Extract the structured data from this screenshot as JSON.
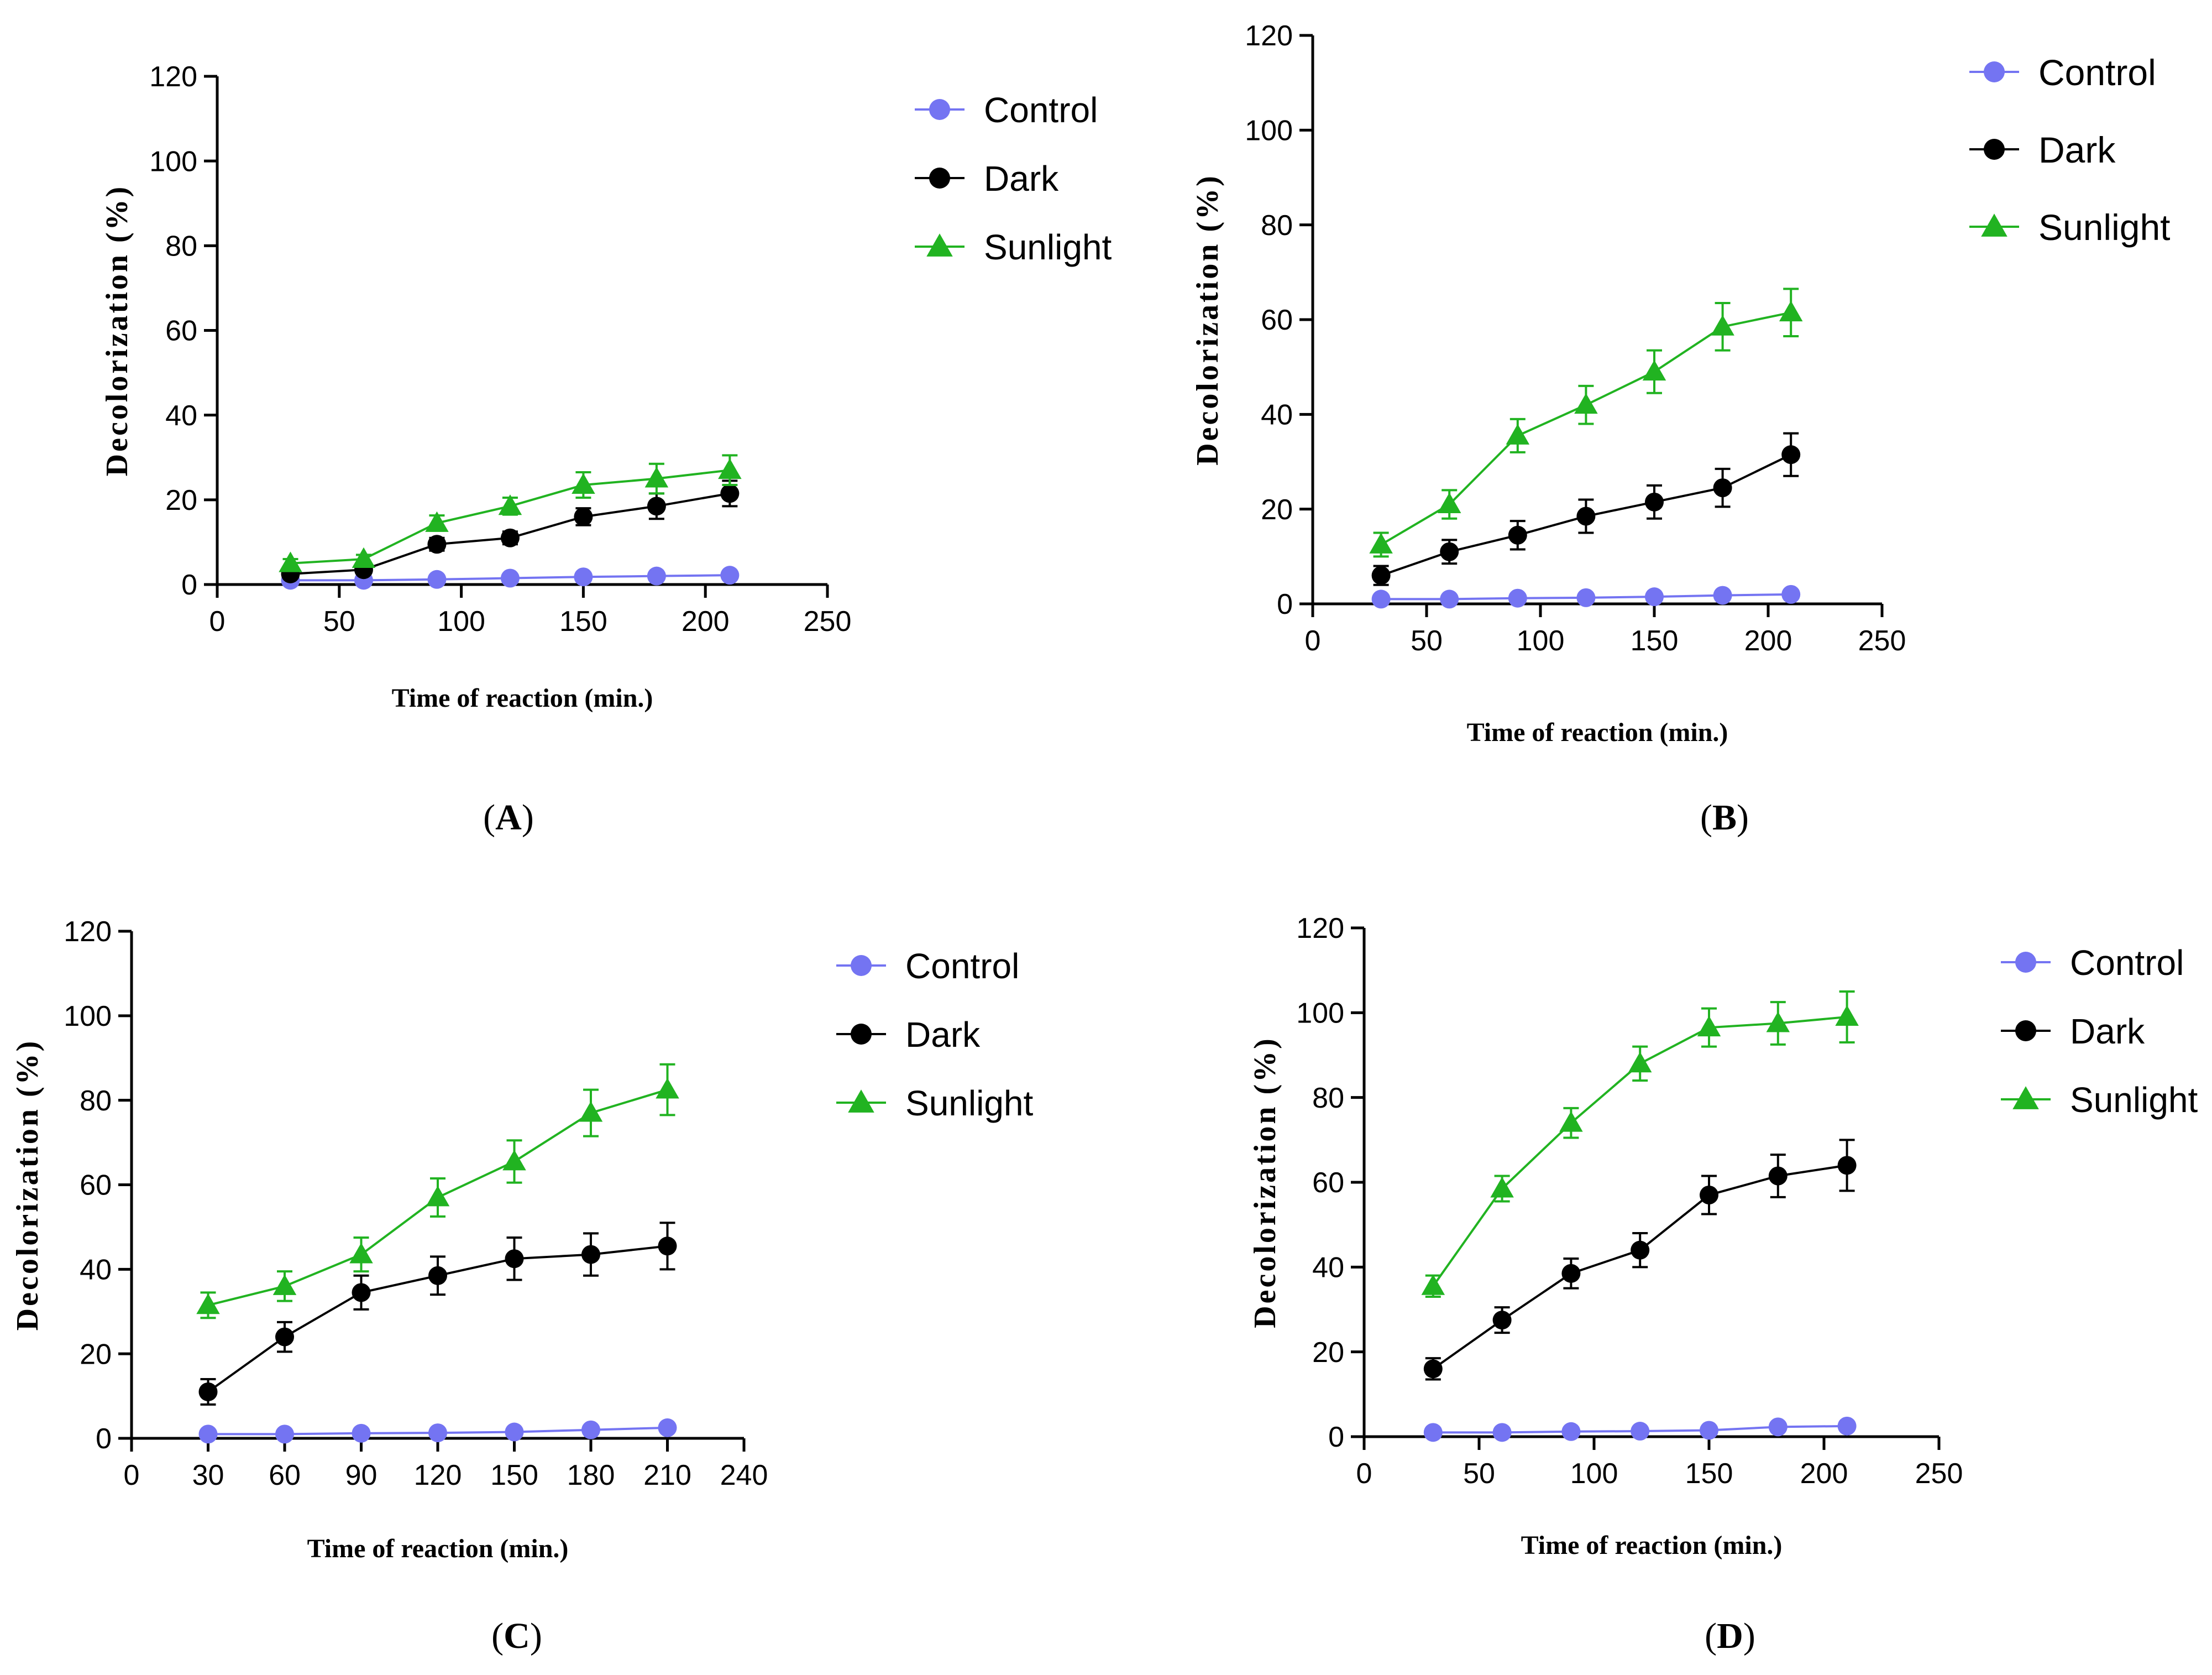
{
  "colors": {
    "control": "#7474f2",
    "dark": "#000000",
    "sunlight": "#21b321",
    "axis": "#000000"
  },
  "chart_data": [
    {
      "panel": "(A)",
      "label_letter": "A",
      "type": "line",
      "xlabel": "Time of reaction (min.)",
      "ylabel": "Decolorization (%)",
      "xlim": [
        0,
        250
      ],
      "ylim": [
        0,
        120
      ],
      "xticks": [
        0,
        50,
        100,
        150,
        200,
        250
      ],
      "yticks": [
        0,
        20,
        40,
        60,
        80,
        100,
        120
      ],
      "x": [
        30,
        60,
        90,
        120,
        150,
        180,
        210
      ],
      "legend": [
        "Control",
        "Dark",
        "Sunlight"
      ],
      "series": [
        {
          "name": "Control",
          "values": [
            1.0,
            1.0,
            1.2,
            1.5,
            1.8,
            2.0,
            2.2
          ],
          "errors": [
            0.4,
            0.4,
            0.4,
            0.4,
            0.4,
            0.5,
            0.5
          ]
        },
        {
          "name": "Dark",
          "values": [
            2.5,
            3.5,
            9.5,
            11.0,
            16.0,
            18.5,
            21.5
          ],
          "errors": [
            0.8,
            1.0,
            1.5,
            1.5,
            2.0,
            3.0,
            3.0
          ]
        },
        {
          "name": "Sunlight",
          "values": [
            5.0,
            6.0,
            14.5,
            18.5,
            23.5,
            25.0,
            27.0
          ],
          "errors": [
            1.0,
            1.0,
            1.8,
            2.0,
            3.0,
            3.5,
            3.5
          ]
        }
      ]
    },
    {
      "panel": "(B)",
      "label_letter": "B",
      "type": "line",
      "xlabel": "Time of reaction (min.)",
      "ylabel": "Decolorization (%)",
      "xlim": [
        0,
        250
      ],
      "ylim": [
        0,
        120
      ],
      "xticks": [
        0,
        50,
        100,
        150,
        200,
        250
      ],
      "yticks": [
        0,
        20,
        40,
        60,
        80,
        100,
        120
      ],
      "x": [
        30,
        60,
        90,
        120,
        150,
        180,
        210
      ],
      "legend": [
        "Control",
        "Dark",
        "Sunlight"
      ],
      "series": [
        {
          "name": "Control",
          "values": [
            1.0,
            1.0,
            1.2,
            1.3,
            1.5,
            1.8,
            2.0
          ],
          "errors": [
            0.5,
            0.5,
            0.5,
            0.5,
            0.5,
            0.5,
            0.6
          ]
        },
        {
          "name": "Dark",
          "values": [
            6.0,
            11.0,
            14.5,
            18.5,
            21.5,
            24.5,
            31.5
          ],
          "errors": [
            2.0,
            2.5,
            3.0,
            3.5,
            3.5,
            4.0,
            4.5
          ]
        },
        {
          "name": "Sunlight",
          "values": [
            12.5,
            21.0,
            35.5,
            42.0,
            49.0,
            58.5,
            61.5
          ],
          "errors": [
            2.5,
            3.0,
            3.5,
            4.0,
            4.5,
            5.0,
            5.0
          ]
        }
      ]
    },
    {
      "panel": "(C)",
      "label_letter": "C",
      "type": "line",
      "xlabel": "Time of reaction (min.)",
      "ylabel": "Decolorization (%)",
      "xlim": [
        0,
        240
      ],
      "ylim": [
        0,
        120
      ],
      "xticks": [
        0,
        30,
        60,
        90,
        120,
        150,
        180,
        210,
        240
      ],
      "yticks": [
        0,
        20,
        40,
        60,
        80,
        100,
        120
      ],
      "x": [
        30,
        60,
        90,
        120,
        150,
        180,
        210
      ],
      "legend": [
        "Control",
        "Dark",
        "Sunlight"
      ],
      "series": [
        {
          "name": "Control",
          "values": [
            1.0,
            1.0,
            1.2,
            1.3,
            1.5,
            2.0,
            2.5
          ],
          "errors": [
            0.5,
            0.5,
            0.5,
            0.5,
            0.5,
            0.6,
            0.6
          ]
        },
        {
          "name": "Dark",
          "values": [
            11.0,
            24.0,
            34.5,
            38.5,
            42.5,
            43.5,
            45.5
          ],
          "errors": [
            3.0,
            3.5,
            4.0,
            4.5,
            5.0,
            5.0,
            5.5
          ]
        },
        {
          "name": "Sunlight",
          "values": [
            31.5,
            36.0,
            43.5,
            57.0,
            65.5,
            77.0,
            82.5
          ],
          "errors": [
            3.0,
            3.5,
            4.0,
            4.5,
            5.0,
            5.5,
            6.0
          ]
        }
      ]
    },
    {
      "panel": "(D)",
      "label_letter": "D",
      "type": "line",
      "xlabel": "Time of reaction (min.)",
      "ylabel": "Decolorization (%)",
      "xlim": [
        0,
        250
      ],
      "ylim": [
        0,
        120
      ],
      "xticks": [
        0,
        50,
        100,
        150,
        200,
        250
      ],
      "yticks": [
        0,
        20,
        40,
        60,
        80,
        100,
        120
      ],
      "x": [
        30,
        60,
        90,
        120,
        150,
        180,
        210
      ],
      "legend": [
        "Control",
        "Dark",
        "Sunlight"
      ],
      "series": [
        {
          "name": "Control",
          "values": [
            1.0,
            1.0,
            1.2,
            1.3,
            1.5,
            2.3,
            2.5
          ],
          "errors": [
            0.5,
            0.5,
            0.5,
            0.5,
            0.5,
            0.6,
            0.6
          ]
        },
        {
          "name": "Dark",
          "values": [
            16.0,
            27.5,
            38.5,
            44.0,
            57.0,
            61.5,
            64.0
          ],
          "errors": [
            2.5,
            3.0,
            3.5,
            4.0,
            4.5,
            5.0,
            6.0
          ]
        },
        {
          "name": "Sunlight",
          "values": [
            35.5,
            58.5,
            74.0,
            88.0,
            96.5,
            97.5,
            99.0
          ],
          "errors": [
            2.5,
            3.0,
            3.5,
            4.0,
            4.5,
            5.0,
            6.0
          ]
        }
      ]
    }
  ]
}
